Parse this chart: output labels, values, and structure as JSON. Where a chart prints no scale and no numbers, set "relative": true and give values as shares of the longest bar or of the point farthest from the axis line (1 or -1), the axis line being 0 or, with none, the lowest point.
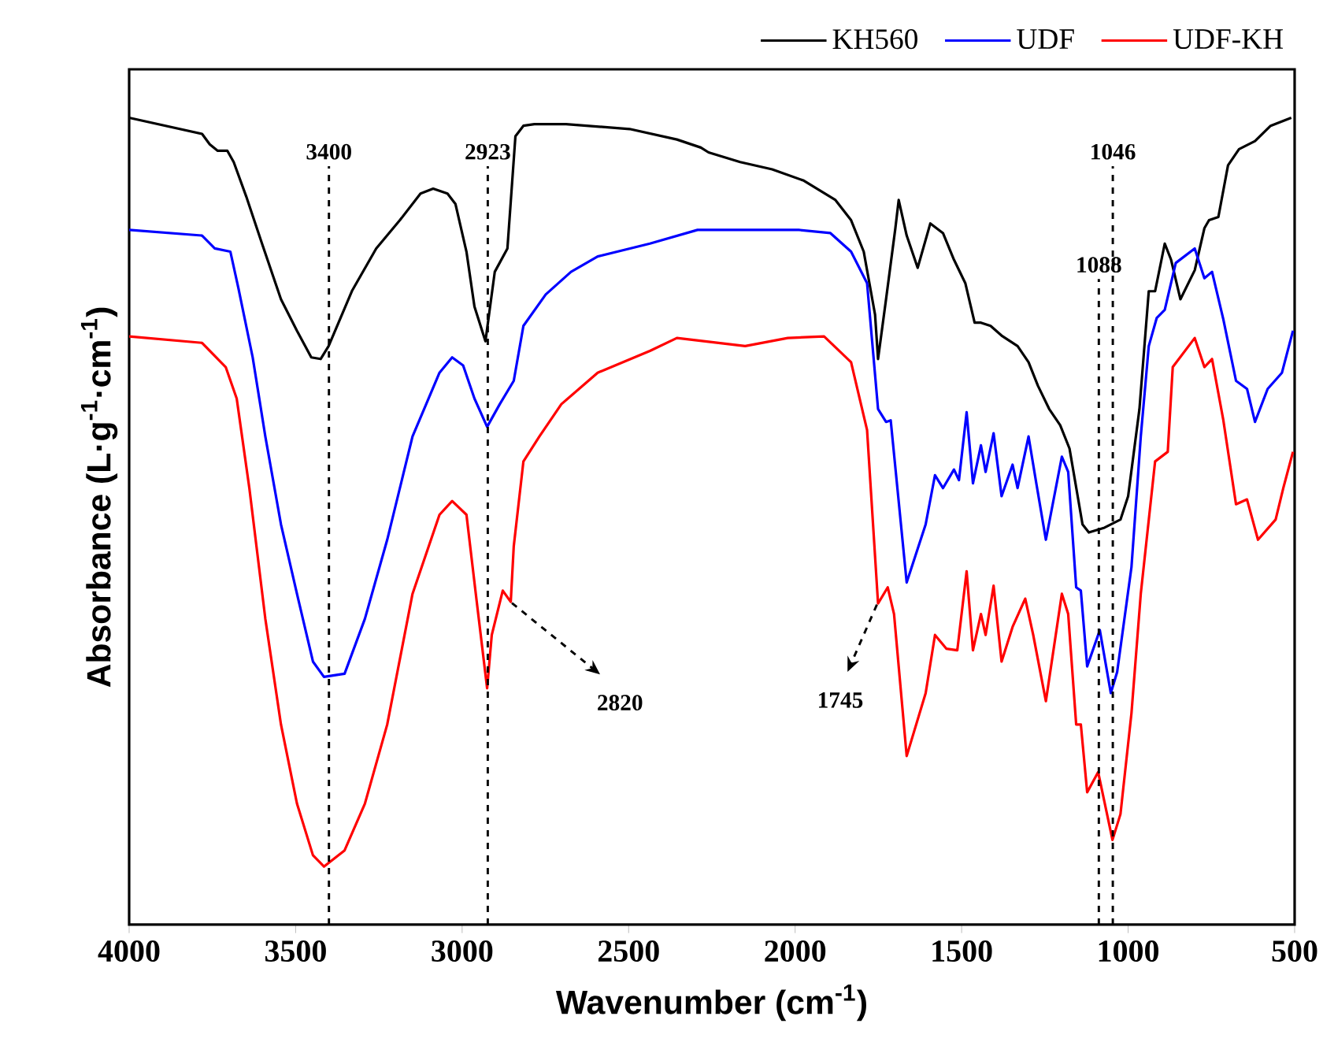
{
  "chart_data": {
    "type": "line",
    "relative": true,
    "xlabel": "Wavenumber (cm$^{-1}$)",
    "ylabel": "Absorbance (L·g$^{-1}$·cm$^{-1}$)",
    "xlim": [
      4000,
      500
    ],
    "xticks": [
      4000,
      3500,
      3000,
      2500,
      2000,
      1500,
      1000,
      500
    ],
    "legend": "top right",
    "series": [
      {
        "name": "KH560",
        "color": "#000000",
        "x": [
          4000,
          3781,
          3758,
          3734,
          3705,
          3686,
          3648,
          3601,
          3544,
          3496,
          3453,
          3425,
          3401,
          3330,
          3258,
          3187,
          3125,
          3087,
          3044,
          3020,
          2987,
          2963,
          2930,
          2902,
          2864,
          2840,
          2816,
          2783,
          2688,
          2497,
          2355,
          2283,
          2260,
          2165,
          2069,
          1974,
          1879,
          1832,
          1794,
          1760,
          1751,
          1727,
          1699,
          1689,
          1665,
          1632,
          1594,
          1556,
          1523,
          1489,
          1461,
          1442,
          1413,
          1380,
          1332,
          1299,
          1271,
          1237,
          1204,
          1176,
          1137,
          1118,
          1071,
          1023,
          1000,
          966,
          938,
          919,
          890,
          871,
          843,
          800,
          771,
          757,
          729,
          700,
          667,
          619,
          572,
          510
        ],
        "values": [
          1.0,
          0.98,
          0.967,
          0.959,
          0.959,
          0.945,
          0.902,
          0.844,
          0.775,
          0.736,
          0.703,
          0.701,
          0.717,
          0.786,
          0.838,
          0.873,
          0.906,
          0.912,
          0.906,
          0.893,
          0.834,
          0.766,
          0.723,
          0.809,
          0.838,
          0.977,
          0.99,
          0.992,
          0.992,
          0.986,
          0.973,
          0.963,
          0.957,
          0.945,
          0.936,
          0.922,
          0.898,
          0.873,
          0.834,
          0.756,
          0.701,
          0.775,
          0.863,
          0.898,
          0.854,
          0.814,
          0.869,
          0.857,
          0.824,
          0.795,
          0.746,
          0.746,
          0.742,
          0.73,
          0.717,
          0.697,
          0.668,
          0.639,
          0.619,
          0.59,
          0.496,
          0.486,
          0.492,
          0.502,
          0.531,
          0.639,
          0.785,
          0.785,
          0.844,
          0.824,
          0.775,
          0.811,
          0.863,
          0.873,
          0.877,
          0.941,
          0.961,
          0.971,
          0.99,
          1.0
        ]
      },
      {
        "name": "UDF",
        "color": "#0000ff",
        "x": [
          4000,
          3781,
          3743,
          3696,
          3672,
          3629,
          3591,
          3544,
          3496,
          3448,
          3415,
          3353,
          3292,
          3225,
          3149,
          3068,
          3030,
          2997,
          2963,
          2925,
          2887,
          2845,
          2816,
          2749,
          2673,
          2593,
          2436,
          2293,
          2260,
          1989,
          1894,
          1832,
          1784,
          1751,
          1727,
          1713,
          1665,
          1608,
          1580,
          1556,
          1523,
          1508,
          1485,
          1466,
          1442,
          1428,
          1404,
          1380,
          1347,
          1332,
          1299,
          1275,
          1247,
          1199,
          1180,
          1156,
          1142,
          1123,
          1085,
          1052,
          1033,
          990,
          962,
          938,
          914,
          890,
          857,
          800,
          771,
          748,
          714,
          676,
          643,
          619,
          581,
          538,
          505
        ],
        "values": [
          0.861,
          0.854,
          0.838,
          0.834,
          0.789,
          0.703,
          0.605,
          0.496,
          0.41,
          0.326,
          0.307,
          0.311,
          0.379,
          0.477,
          0.605,
          0.684,
          0.703,
          0.693,
          0.652,
          0.617,
          0.645,
          0.674,
          0.742,
          0.781,
          0.809,
          0.828,
          0.844,
          0.861,
          0.861,
          0.861,
          0.857,
          0.834,
          0.795,
          0.639,
          0.623,
          0.625,
          0.424,
          0.496,
          0.557,
          0.541,
          0.564,
          0.551,
          0.635,
          0.547,
          0.594,
          0.561,
          0.609,
          0.531,
          0.57,
          0.541,
          0.605,
          0.545,
          0.477,
          0.58,
          0.561,
          0.418,
          0.414,
          0.32,
          0.365,
          0.287,
          0.313,
          0.443,
          0.605,
          0.717,
          0.752,
          0.762,
          0.82,
          0.838,
          0.801,
          0.809,
          0.75,
          0.674,
          0.664,
          0.623,
          0.664,
          0.684,
          0.736
        ]
      },
      {
        "name": "UDF-KH",
        "color": "#ff0000",
        "x": [
          4000,
          3781,
          3710,
          3677,
          3639,
          3591,
          3544,
          3496,
          3448,
          3415,
          3353,
          3292,
          3225,
          3149,
          3068,
          3030,
          2987,
          2959,
          2925,
          2911,
          2878,
          2854,
          2845,
          2816,
          2768,
          2702,
          2593,
          2436,
          2355,
          2150,
          2022,
          1913,
          1832,
          1784,
          1751,
          1722,
          1703,
          1665,
          1608,
          1580,
          1546,
          1513,
          1485,
          1466,
          1442,
          1428,
          1404,
          1380,
          1347,
          1309,
          1285,
          1247,
          1199,
          1180,
          1156,
          1142,
          1123,
          1090,
          1047,
          1023,
          990,
          962,
          919,
          881,
          866,
          800,
          771,
          748,
          714,
          676,
          643,
          610,
          557,
          534,
          505
        ],
        "values": [
          0.729,
          0.721,
          0.691,
          0.652,
          0.541,
          0.379,
          0.248,
          0.15,
          0.086,
          0.072,
          0.092,
          0.15,
          0.248,
          0.41,
          0.508,
          0.525,
          0.508,
          0.41,
          0.293,
          0.359,
          0.414,
          0.4,
          0.469,
          0.574,
          0.605,
          0.645,
          0.684,
          0.711,
          0.727,
          0.717,
          0.727,
          0.729,
          0.697,
          0.613,
          0.398,
          0.418,
          0.385,
          0.209,
          0.287,
          0.359,
          0.342,
          0.34,
          0.438,
          0.34,
          0.385,
          0.359,
          0.42,
          0.326,
          0.369,
          0.404,
          0.359,
          0.277,
          0.41,
          0.385,
          0.248,
          0.248,
          0.164,
          0.189,
          0.105,
          0.137,
          0.262,
          0.41,
          0.574,
          0.586,
          0.691,
          0.727,
          0.691,
          0.701,
          0.625,
          0.521,
          0.527,
          0.477,
          0.502,
          0.541,
          0.586
        ]
      }
    ],
    "ref_lines": [
      {
        "axis": "x",
        "value": 3400,
        "label": "3400",
        "line_style": "dashed"
      },
      {
        "axis": "x",
        "value": 2923,
        "label": "2923",
        "line_style": "dashed"
      },
      {
        "axis": "x",
        "value": 1088,
        "label": "1088",
        "line_style": "dashed"
      },
      {
        "axis": "x",
        "value": 1046,
        "label": "1046",
        "line_style": "dashed"
      }
    ],
    "annotations": [
      {
        "text": "2820",
        "x": 2854,
        "y": 0.4
      },
      {
        "text": "1745",
        "x": 1751,
        "y": 0.398
      }
    ]
  }
}
